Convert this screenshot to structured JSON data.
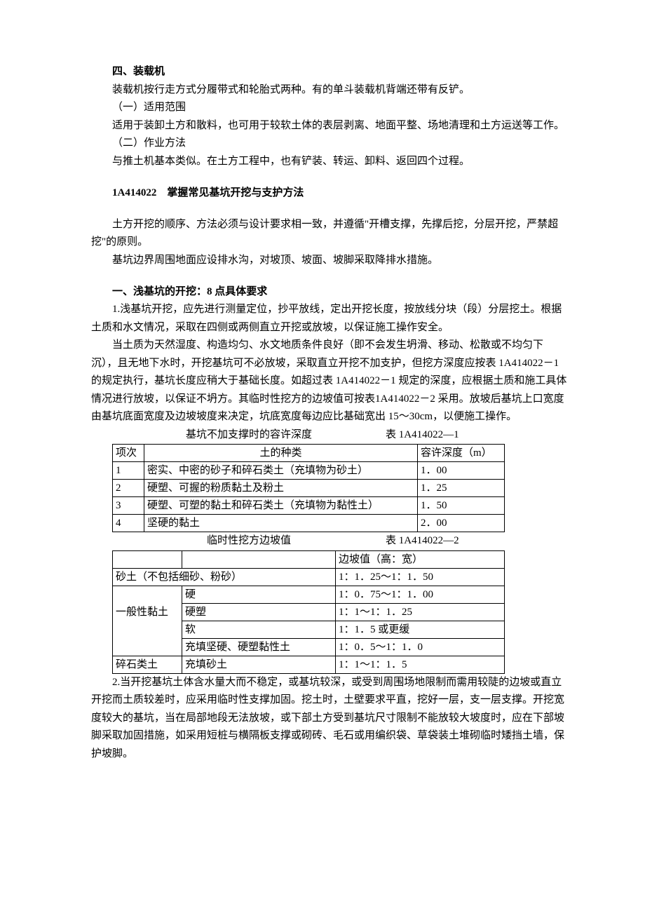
{
  "sec4": {
    "heading": "四、装载机",
    "p1": "装载机按行走方式分履带式和轮胎式两种。有的单斗装载机背端还带有反铲。",
    "p2": "（一）适用范围",
    "p3": "适用于装卸土方和散料，也可用于较软土体的表层剥离、地面平整、场地清理和土方运送等工作。",
    "p4": "（二）作业方法",
    "p5": "与推土机基本类似。在土方工程中，也有铲装、转运、卸料、返回四个过程。"
  },
  "sec1a": {
    "heading": "1A414022　掌握常见基坑开挖与支护方法",
    "p1": "土方开挖的顺序、方法必须与设计要求相一致，并遵循\"开槽支撑，先撑后挖，分层开挖，严禁超挖\"的原则。",
    "p2": "基坑边界周围地面应设排水沟，对坡顶、坡面、坡脚采取降排水措施。"
  },
  "secShallow": {
    "heading": "一、浅基坑的开挖：8 点具体要求",
    "p1": "1.浅基坑开挖，应先进行测量定位，抄平放线，定出开挖长度，按放线分块（段）分层挖土。根据土质和水文情况，采取在四侧或两侧直立开挖或放坡，以保证施工操作安全。",
    "p2": "当土质为天然湿度、构造均匀、水文地质条件良好（即不会发生坍滑、移动、松散或不均匀下沉），且无地下水时，开挖基坑可不必放坡，采取直立开挖不加支护，但挖方深度应按表 1A414022－1 的规定执行，基坑长度应稍大于基础长度。如超过表 1A414022－1 规定的深度，应根据土质和施工具体情况进行放坡，以保证不坍方。其临时性挖方的边坡值可按表1A414022－2 采用。放坡后基坑上口宽度由基坑底面宽度及边坡坡度来决定，坑底宽度每边应比基础宽出 15～30cm，以便施工操作。",
    "p3": "2.当开挖基坑土体含水量大而不稳定，或基坑较深，或受到周围场地限制而需用较陡的边坡或直立开挖而土质较差时，应采用临时性支撑加固。挖土时，土壁要求平直，挖好一层，支一层支撑。开挖宽度较大的基坑，当在局部地段无法放坡，或下部土方受到基坑尺寸限制不能放较大坡度时，应在下部坡脚采取加固措施，如采用短桩与横隔板支撑或砌砖、毛石或用编织袋、草袋装土堆砌临时矮挡土墙，保护坡脚。"
  },
  "table1": {
    "caption_title": "基坑不加支撑时的容许深度",
    "caption_ref": "表 1A414022—1",
    "header": {
      "c1": "项次",
      "c2": "土的种类",
      "c3": "容许深度（m）"
    },
    "rows": [
      {
        "c1": "1",
        "c2": "密实、中密的砂子和碎石类土（充填物为砂土）",
        "c3": "1．00"
      },
      {
        "c1": "2",
        "c2": "硬塑、可握的粉质黏土及粉土",
        "c3": "1．25"
      },
      {
        "c1": "3",
        "c2": "硬塑、可塑的黏土和碎石类土（充填物为黏性土）",
        "c3": "1．50"
      },
      {
        "c1": "4",
        "c2": "坚硬的黏土",
        "c3": "2．00"
      }
    ]
  },
  "table2": {
    "caption_title": "临时性挖方边坡值",
    "caption_ref": "表 1A414022—2",
    "header": {
      "c3": "边坡值（高：宽）"
    },
    "rows": [
      {
        "c1": "砂土（不包括细砂、粉砂）",
        "merged": true,
        "c3": "1：1．25～1：1．50"
      },
      {
        "c1": "",
        "c2": "硬",
        "c3": "1：0．75～1：1．00"
      },
      {
        "c1": "一般性黏土",
        "c2": "硬塑",
        "c3": "1：1～1：1．25"
      },
      {
        "c1": "",
        "c2": "软",
        "c3": "1：1．5 或更缓"
      },
      {
        "c1": "",
        "c2": "充填坚硬、硬塑黏性土",
        "c3": "1：0．5～1：1．0"
      },
      {
        "c1": "碎石类土",
        "c2": "充填砂土",
        "c3": "1：1～1：1．5"
      }
    ]
  }
}
